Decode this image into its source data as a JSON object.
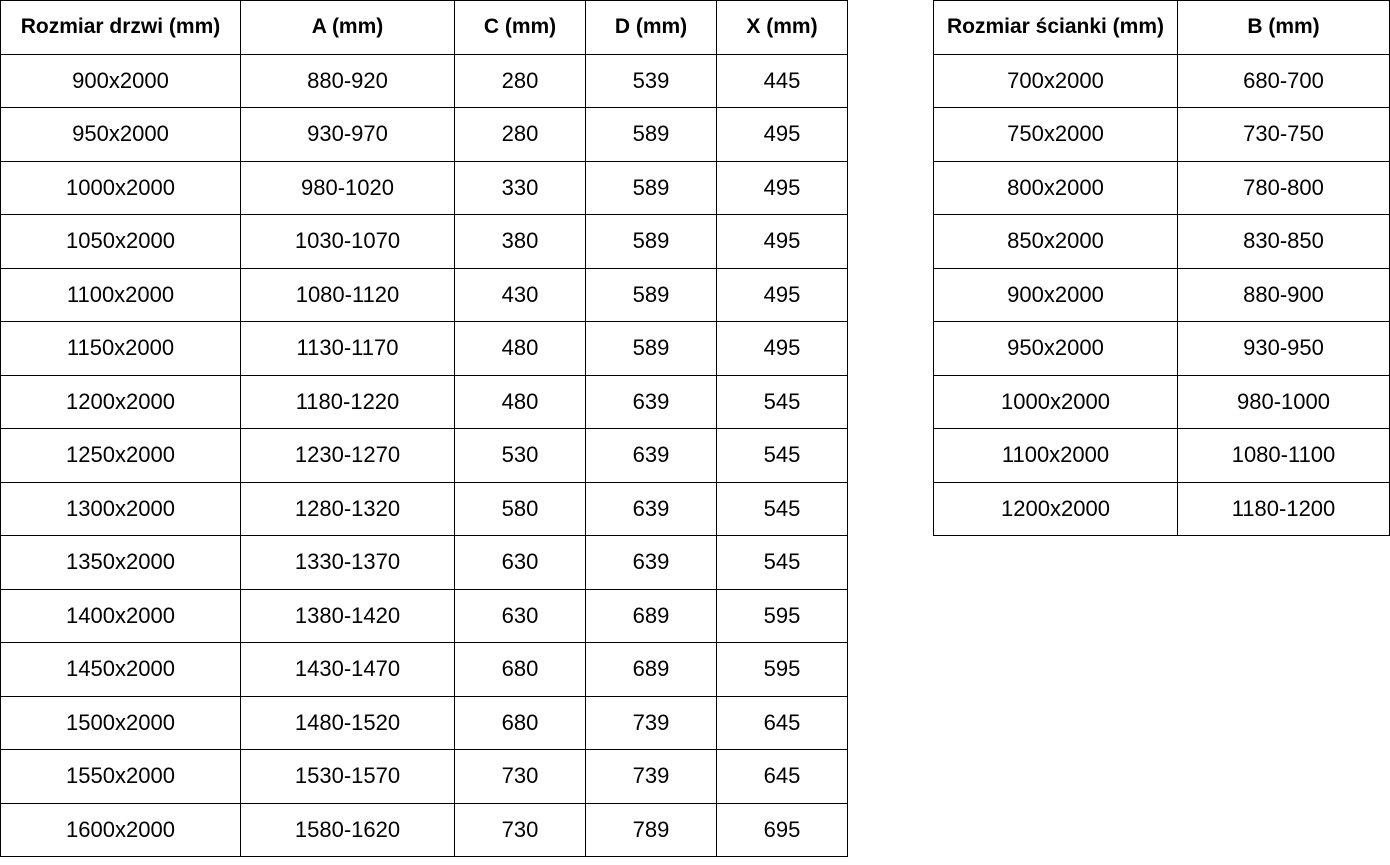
{
  "doors_table": {
    "headers": [
      "Rozmiar drzwi (mm)",
      "A (mm)",
      "C (mm)",
      "D (mm)",
      "X (mm)"
    ],
    "rows": [
      [
        "900x2000",
        "880-920",
        "280",
        "539",
        "445"
      ],
      [
        "950x2000",
        "930-970",
        "280",
        "589",
        "495"
      ],
      [
        "1000x2000",
        "980-1020",
        "330",
        "589",
        "495"
      ],
      [
        "1050x2000",
        "1030-1070",
        "380",
        "589",
        "495"
      ],
      [
        "1100x2000",
        "1080-1120",
        "430",
        "589",
        "495"
      ],
      [
        "1150x2000",
        "1130-1170",
        "480",
        "589",
        "495"
      ],
      [
        "1200x2000",
        "1180-1220",
        "480",
        "639",
        "545"
      ],
      [
        "1250x2000",
        "1230-1270",
        "530",
        "639",
        "545"
      ],
      [
        "1300x2000",
        "1280-1320",
        "580",
        "639",
        "545"
      ],
      [
        "1350x2000",
        "1330-1370",
        "630",
        "639",
        "545"
      ],
      [
        "1400x2000",
        "1380-1420",
        "630",
        "689",
        "595"
      ],
      [
        "1450x2000",
        "1430-1470",
        "680",
        "689",
        "595"
      ],
      [
        "1500x2000",
        "1480-1520",
        "680",
        "739",
        "645"
      ],
      [
        "1550x2000",
        "1530-1570",
        "730",
        "739",
        "645"
      ],
      [
        "1600x2000",
        "1580-1620",
        "730",
        "789",
        "695"
      ]
    ]
  },
  "walls_table": {
    "headers": [
      "Rozmiar ścianki (mm)",
      "B (mm)"
    ],
    "rows": [
      [
        "700x2000",
        "680-700"
      ],
      [
        "750x2000",
        "730-750"
      ],
      [
        "800x2000",
        "780-800"
      ],
      [
        "850x2000",
        "830-850"
      ],
      [
        "900x2000",
        "880-900"
      ],
      [
        "950x2000",
        "930-950"
      ],
      [
        "1000x2000",
        "980-1000"
      ],
      [
        "1100x2000",
        "1080-1100"
      ],
      [
        "1200x2000",
        "1180-1200"
      ]
    ]
  },
  "colors": {
    "border": "#000000",
    "background": "#ffffff",
    "text": "#000000"
  }
}
